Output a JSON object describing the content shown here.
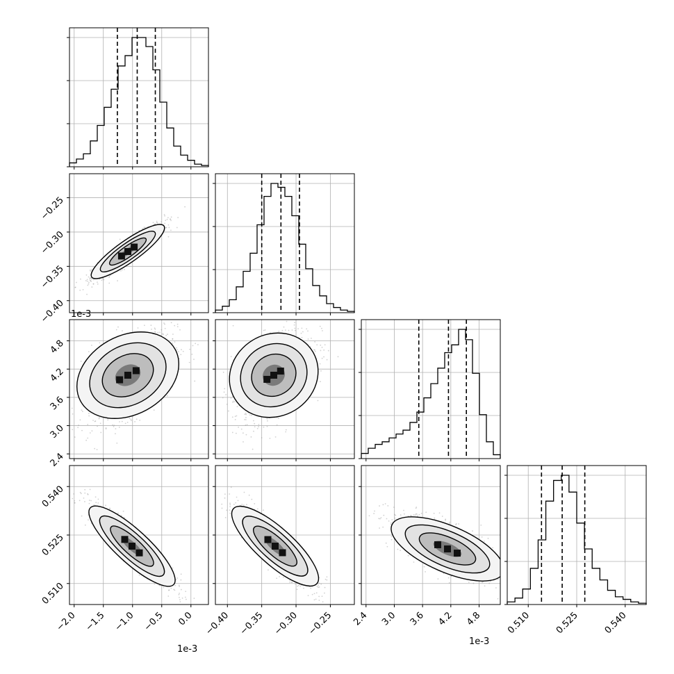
{
  "chart_data": {
    "type": "corner",
    "grid": true,
    "parameters": [
      {
        "range": [
          -0.00208,
          0.0003
        ],
        "ticks": [
          -0.002,
          -0.0015,
          -0.001,
          -0.0005,
          0.0
        ],
        "tick_labels": [
          "−2.0",
          "−1.5",
          "−1.0",
          "−0.5",
          "0.0"
        ],
        "offset_label": "1e-3",
        "quantiles": [
          -0.00126,
          -0.00092,
          -0.00061
        ],
        "hist": [
          0.03,
          0.06,
          0.1,
          0.2,
          0.32,
          0.46,
          0.6,
          0.78,
          0.86,
          1.0,
          1.0,
          0.93,
          0.75,
          0.5,
          0.3,
          0.16,
          0.09,
          0.05,
          0.02,
          0.01
        ]
      },
      {
        "range": [
          -0.4175,
          -0.215
        ],
        "ticks": [
          -0.4,
          -0.35,
          -0.3,
          -0.25
        ],
        "tick_labels": [
          "−0.40",
          "−0.35",
          "−0.30",
          "−0.25"
        ],
        "offset_label": "",
        "quantiles": [
          -0.35,
          -0.322,
          -0.295
        ],
        "hist": [
          0.02,
          0.05,
          0.1,
          0.2,
          0.32,
          0.46,
          0.68,
          0.9,
          1.0,
          0.97,
          0.9,
          0.75,
          0.53,
          0.34,
          0.21,
          0.13,
          0.07,
          0.04,
          0.02,
          0.01
        ]
      },
      {
        "range": [
          0.0023,
          0.00525
        ],
        "ticks": [
          0.0024,
          0.003,
          0.0036,
          0.0042,
          0.0048
        ],
        "tick_labels": [
          "2.4",
          "3.0",
          "3.6",
          "4.2",
          "4.8"
        ],
        "offset_label": "1e-3",
        "quantiles": [
          0.00352,
          0.00415,
          0.00453
        ],
        "hist": [
          0.04,
          0.08,
          0.11,
          0.13,
          0.16,
          0.19,
          0.22,
          0.28,
          0.36,
          0.47,
          0.58,
          0.7,
          0.82,
          0.88,
          1.0,
          0.92,
          0.66,
          0.34,
          0.13,
          0.03
        ]
      },
      {
        "range": [
          0.5035,
          0.5465
        ],
        "ticks": [
          0.51,
          0.525,
          0.54
        ],
        "tick_labels": [
          "0.510",
          "0.525",
          "0.540"
        ],
        "offset_label": "",
        "quantiles": [
          0.5141,
          0.5205,
          0.5275
        ],
        "hist": [
          0.02,
          0.05,
          0.12,
          0.28,
          0.5,
          0.8,
          0.96,
          1.0,
          0.87,
          0.63,
          0.43,
          0.28,
          0.19,
          0.11,
          0.06,
          0.04,
          0.02,
          0.01
        ]
      }
    ]
  }
}
